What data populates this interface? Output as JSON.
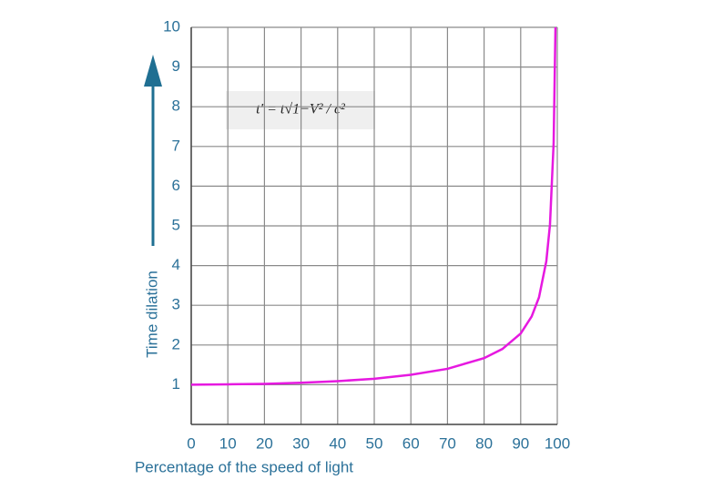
{
  "chart_data": {
    "type": "line",
    "annotation": "t′ = t√1−V² / c²",
    "x_label": "Percentage of the speed of light",
    "y_label": "Time dilation",
    "x": [
      0,
      10,
      20,
      30,
      40,
      50,
      60,
      70,
      80,
      85,
      90,
      93,
      95,
      97,
      98,
      99,
      99.5
    ],
    "series": [
      {
        "color": "#e619e0",
        "values": [
          1,
          1.01,
          1.02,
          1.05,
          1.09,
          1.15,
          1.25,
          1.4,
          1.67,
          1.9,
          2.29,
          2.72,
          3.2,
          4.11,
          5.03,
          7.09,
          10
        ]
      }
    ],
    "xlim": [
      0,
      100
    ],
    "xticks": [
      0,
      10,
      20,
      30,
      40,
      50,
      60,
      70,
      80,
      90,
      100
    ],
    "ylim": [
      0,
      10
    ],
    "yticks": [
      1,
      2,
      3,
      4,
      5,
      6,
      7,
      8,
      9,
      10
    ],
    "grid": true
  }
}
